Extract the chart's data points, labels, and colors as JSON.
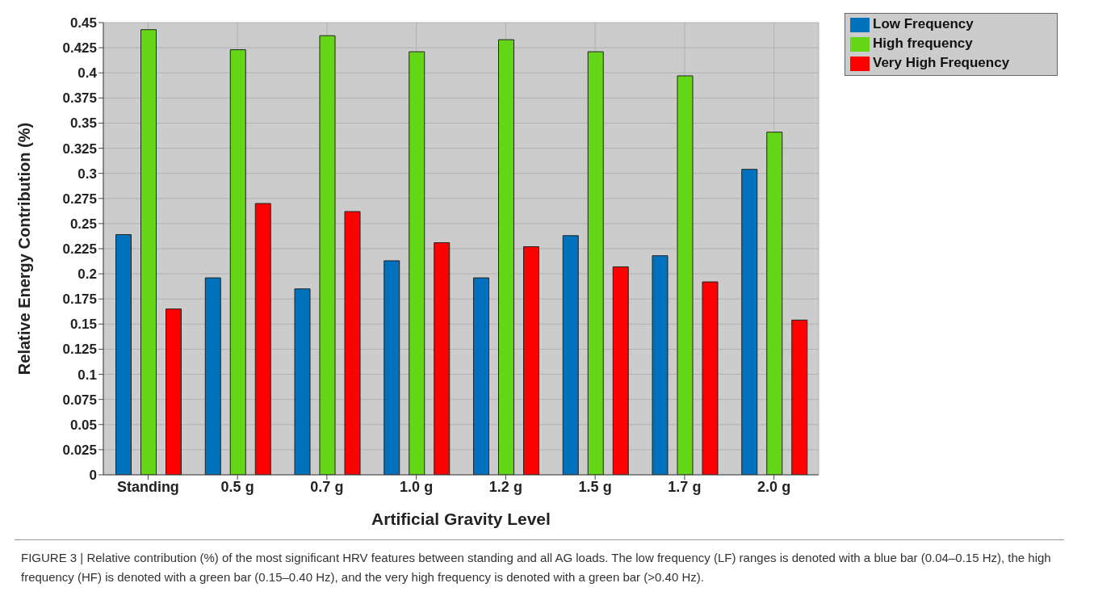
{
  "chart_data": {
    "type": "bar",
    "xlabel": "Artificial Gravity Level",
    "ylabel": "Relative Energy Contribution (%)",
    "categories": [
      "Standing",
      "0.5 g",
      "0.7 g",
      "1.0 g",
      "1.2 g",
      "1.5 g",
      "1.7 g",
      "2.0 g"
    ],
    "series": [
      {
        "name": "Low Frequency",
        "color": "#0072bd",
        "values": [
          0.239,
          0.196,
          0.185,
          0.213,
          0.196,
          0.238,
          0.218,
          0.304
        ]
      },
      {
        "name": "High frequency",
        "color": "#63d615",
        "values": [
          0.443,
          0.423,
          0.437,
          0.421,
          0.433,
          0.421,
          0.397,
          0.341
        ]
      },
      {
        "name": "Very High Frequency",
        "color": "#ff0000",
        "values": [
          0.165,
          0.27,
          0.262,
          0.231,
          0.227,
          0.207,
          0.192,
          0.154
        ]
      }
    ],
    "ylim": [
      0,
      0.45
    ],
    "yticks": [
      0,
      0.025,
      0.05,
      0.075,
      0.1,
      0.125,
      0.15,
      0.175,
      0.2,
      0.225,
      0.25,
      0.275,
      0.3,
      0.325,
      0.35,
      0.375,
      0.4,
      0.425,
      0.45
    ],
    "grid": true,
    "legend": "top right",
    "annotations": [
      "FIGURE 3 | Relative contribution (%) of the most significant HRV features between standing and all AG loads. The low frequency (LF) ranges is denoted with a blue bar (0.04–0.15 Hz), the high frequency (HF) is denoted with a green bar (0.15–0.40 Hz), and the very high frequency is denoted with a green bar (>0.40 Hz)."
    ]
  }
}
